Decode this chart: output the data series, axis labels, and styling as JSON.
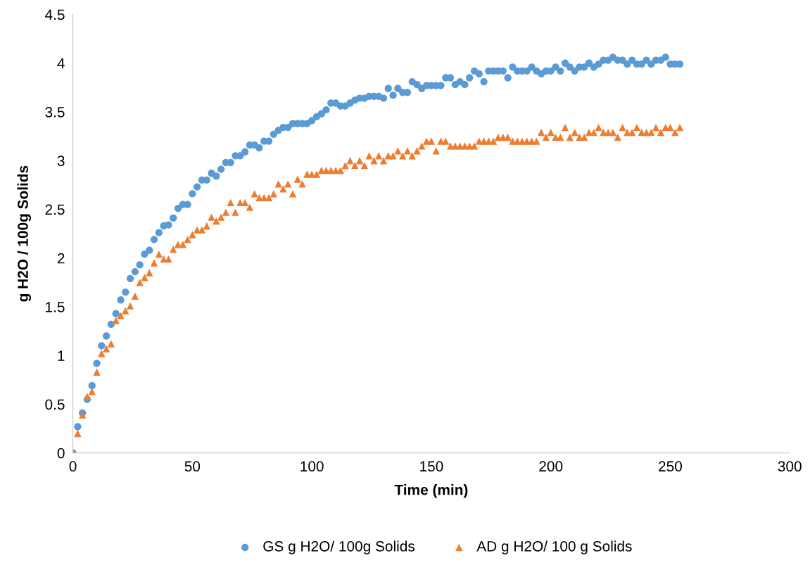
{
  "chart_data": {
    "type": "scatter",
    "xlabel": "Time (min)",
    "ylabel": "g H2O / 100g Solids",
    "x": [
      0,
      2,
      4,
      6,
      8,
      10,
      12,
      14,
      16,
      18,
      20,
      22,
      24,
      26,
      28,
      30,
      32,
      34,
      36,
      38,
      40,
      42,
      44,
      46,
      48,
      50,
      52,
      54,
      56,
      58,
      60,
      62,
      64,
      66,
      68,
      70,
      72,
      74,
      76,
      78,
      80,
      82,
      84,
      86,
      88,
      90,
      92,
      94,
      96,
      98,
      100,
      102,
      104,
      106,
      108,
      110,
      112,
      114,
      116,
      118,
      120,
      122,
      124,
      126,
      128,
      130,
      132,
      134,
      136,
      138,
      140,
      142,
      144,
      146,
      148,
      150,
      152,
      154,
      156,
      158,
      160,
      162,
      164,
      166,
      168,
      170,
      172,
      174,
      176,
      178,
      180,
      182,
      184,
      186,
      188,
      190,
      192,
      194,
      196,
      198,
      200,
      202,
      204,
      206,
      208,
      210,
      212,
      214,
      216,
      218,
      220,
      222,
      224,
      226,
      228,
      230,
      232,
      234,
      236,
      238,
      240,
      242,
      244,
      246,
      248,
      250,
      252,
      254
    ],
    "series": [
      {
        "name": "GS g H2O/ 100g Solids",
        "color": "#5b9bd5",
        "marker": "circle",
        "values": [
          0,
          0.27,
          0.41,
          0.55,
          0.69,
          0.92,
          1.1,
          1.2,
          1.32,
          1.43,
          1.57,
          1.65,
          1.79,
          1.86,
          1.93,
          2.04,
          2.08,
          2.19,
          2.26,
          2.33,
          2.34,
          2.41,
          2.51,
          2.55,
          2.55,
          2.66,
          2.73,
          2.8,
          2.8,
          2.87,
          2.84,
          2.91,
          2.98,
          2.98,
          3.05,
          3.05,
          3.09,
          3.16,
          3.16,
          3.13,
          3.2,
          3.2,
          3.27,
          3.31,
          3.34,
          3.34,
          3.38,
          3.38,
          3.38,
          3.38,
          3.41,
          3.45,
          3.48,
          3.52,
          3.59,
          3.59,
          3.56,
          3.56,
          3.59,
          3.62,
          3.64,
          3.64,
          3.66,
          3.66,
          3.66,
          3.64,
          3.74,
          3.67,
          3.74,
          3.7,
          3.7,
          3.81,
          3.78,
          3.74,
          3.77,
          3.77,
          3.77,
          3.77,
          3.85,
          3.85,
          3.78,
          3.81,
          3.78,
          3.85,
          3.92,
          3.89,
          3.81,
          3.92,
          3.92,
          3.92,
          3.92,
          3.85,
          3.96,
          3.92,
          3.92,
          3.92,
          3.96,
          3.92,
          3.89,
          3.92,
          3.92,
          3.96,
          3.92,
          4.0,
          3.96,
          3.92,
          3.96,
          3.96,
          4.0,
          3.96,
          3.99,
          4.03,
          4.03,
          4.06,
          4.03,
          4.03,
          3.99,
          4.03,
          3.99,
          3.99,
          4.03,
          3.99,
          4.03,
          4.03,
          4.06,
          3.99,
          3.99,
          3.99
        ]
      },
      {
        "name": "AD g H2O/ 100 g Solids",
        "color": "#ed7d31",
        "marker": "triangle",
        "values": [
          0,
          0.2,
          0.39,
          0.58,
          0.63,
          0.83,
          1.02,
          1.07,
          1.12,
          1.36,
          1.41,
          1.46,
          1.51,
          1.61,
          1.75,
          1.8,
          1.85,
          1.95,
          2.04,
          1.99,
          1.99,
          2.09,
          2.14,
          2.14,
          2.19,
          2.24,
          2.29,
          2.29,
          2.33,
          2.42,
          2.38,
          2.42,
          2.47,
          2.57,
          2.47,
          2.57,
          2.57,
          2.52,
          2.66,
          2.62,
          2.62,
          2.62,
          2.66,
          2.76,
          2.71,
          2.76,
          2.66,
          2.81,
          2.76,
          2.86,
          2.86,
          2.86,
          2.9,
          2.9,
          2.9,
          2.9,
          2.9,
          2.95,
          3.0,
          2.95,
          3.0,
          2.95,
          3.05,
          3.0,
          3.05,
          3.0,
          3.05,
          3.05,
          3.1,
          3.05,
          3.1,
          3.05,
          3.1,
          3.15,
          3.2,
          3.2,
          3.1,
          3.2,
          3.2,
          3.15,
          3.15,
          3.15,
          3.15,
          3.15,
          3.15,
          3.2,
          3.2,
          3.2,
          3.2,
          3.24,
          3.24,
          3.24,
          3.2,
          3.2,
          3.2,
          3.2,
          3.2,
          3.2,
          3.29,
          3.24,
          3.29,
          3.24,
          3.24,
          3.34,
          3.24,
          3.29,
          3.24,
          3.24,
          3.29,
          3.29,
          3.34,
          3.29,
          3.29,
          3.29,
          3.24,
          3.34,
          3.29,
          3.29,
          3.34,
          3.29,
          3.29,
          3.29,
          3.34,
          3.29,
          3.34,
          3.34,
          3.29,
          3.34
        ]
      }
    ],
    "xlim": [
      0,
      300
    ],
    "xticks": [
      0,
      50,
      100,
      150,
      200,
      250,
      300
    ],
    "ylim": [
      0,
      4.5
    ],
    "yticks": [
      0,
      0.5,
      1,
      1.5,
      2,
      2.5,
      3,
      3.5,
      4,
      4.5
    ],
    "grid": false,
    "legend": "bottom"
  }
}
